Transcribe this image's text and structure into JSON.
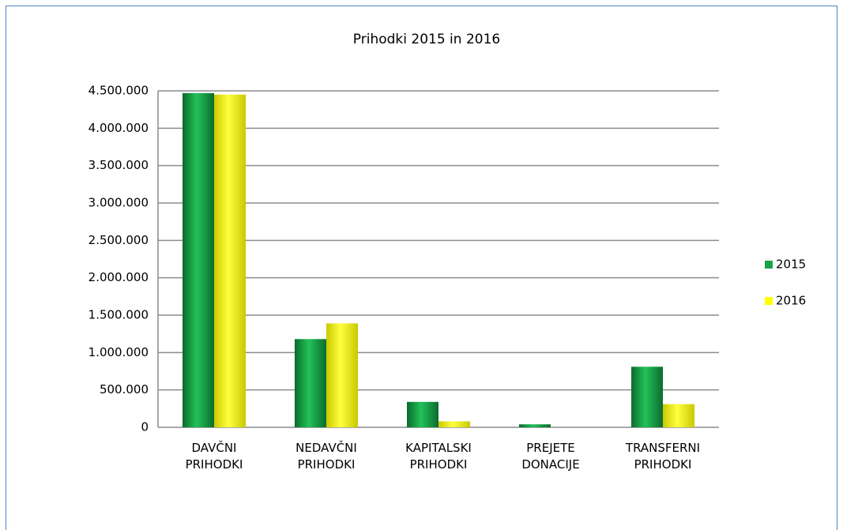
{
  "chart_data": {
    "type": "bar",
    "title": "Prihodki 2015 in 2016",
    "categories": [
      "DAVČNI PRIHODKI",
      "NEDAVČNI PRIHODKI",
      "KAPITALSKI PRIHODKI",
      "PREJETE DONACIJE",
      "TRANSFERNI PRIHODKI"
    ],
    "series": [
      {
        "name": "2015",
        "color": "#1aa34a",
        "values": [
          4470000,
          1180000,
          340000,
          40000,
          810000
        ]
      },
      {
        "name": "2016",
        "color": "#ffff00",
        "values": [
          4450000,
          1390000,
          80000,
          0,
          310000
        ]
      }
    ],
    "ylim": [
      0,
      4500000
    ],
    "yticks": [
      0,
      {
        "value": 500000,
        "label": "500.000"
      },
      {
        "value": 1000000,
        "label": "1.000.000"
      },
      {
        "value": 1500000,
        "label": "1.500.000"
      },
      {
        "value": 2000000,
        "label": "2.000.000"
      },
      {
        "value": 2500000,
        "label": "2.500.000"
      },
      {
        "value": 3000000,
        "label": "3.000.000"
      },
      {
        "value": 3500000,
        "label": "3.500.000"
      },
      {
        "value": 4000000,
        "label": "4.000.000"
      },
      {
        "value": 4500000,
        "label": "4.500.000"
      }
    ],
    "grid": true,
    "legend": "right"
  }
}
